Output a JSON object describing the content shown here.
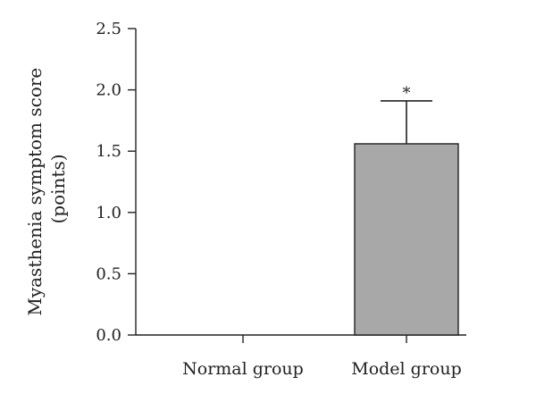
{
  "chart_data": {
    "type": "bar",
    "title": "",
    "xlabel": "",
    "ylabel_lines": [
      "Myasthenia symptom score",
      "(points)"
    ],
    "categories": [
      "Normal group",
      "Model group"
    ],
    "values": [
      0.0,
      1.56
    ],
    "error_upper": [
      0.0,
      0.35
    ],
    "annotations": [
      "",
      "*"
    ],
    "ylim": [
      0,
      2.5
    ],
    "yticks": [
      0.0,
      0.5,
      1.0,
      1.5,
      2.0,
      2.5
    ],
    "ytick_labels": [
      "0.0",
      "0.5",
      "1.0",
      "1.5",
      "2.0",
      "2.5"
    ],
    "grid": false,
    "bar_color": "#a8a8a8",
    "axis_color": "#222222"
  }
}
